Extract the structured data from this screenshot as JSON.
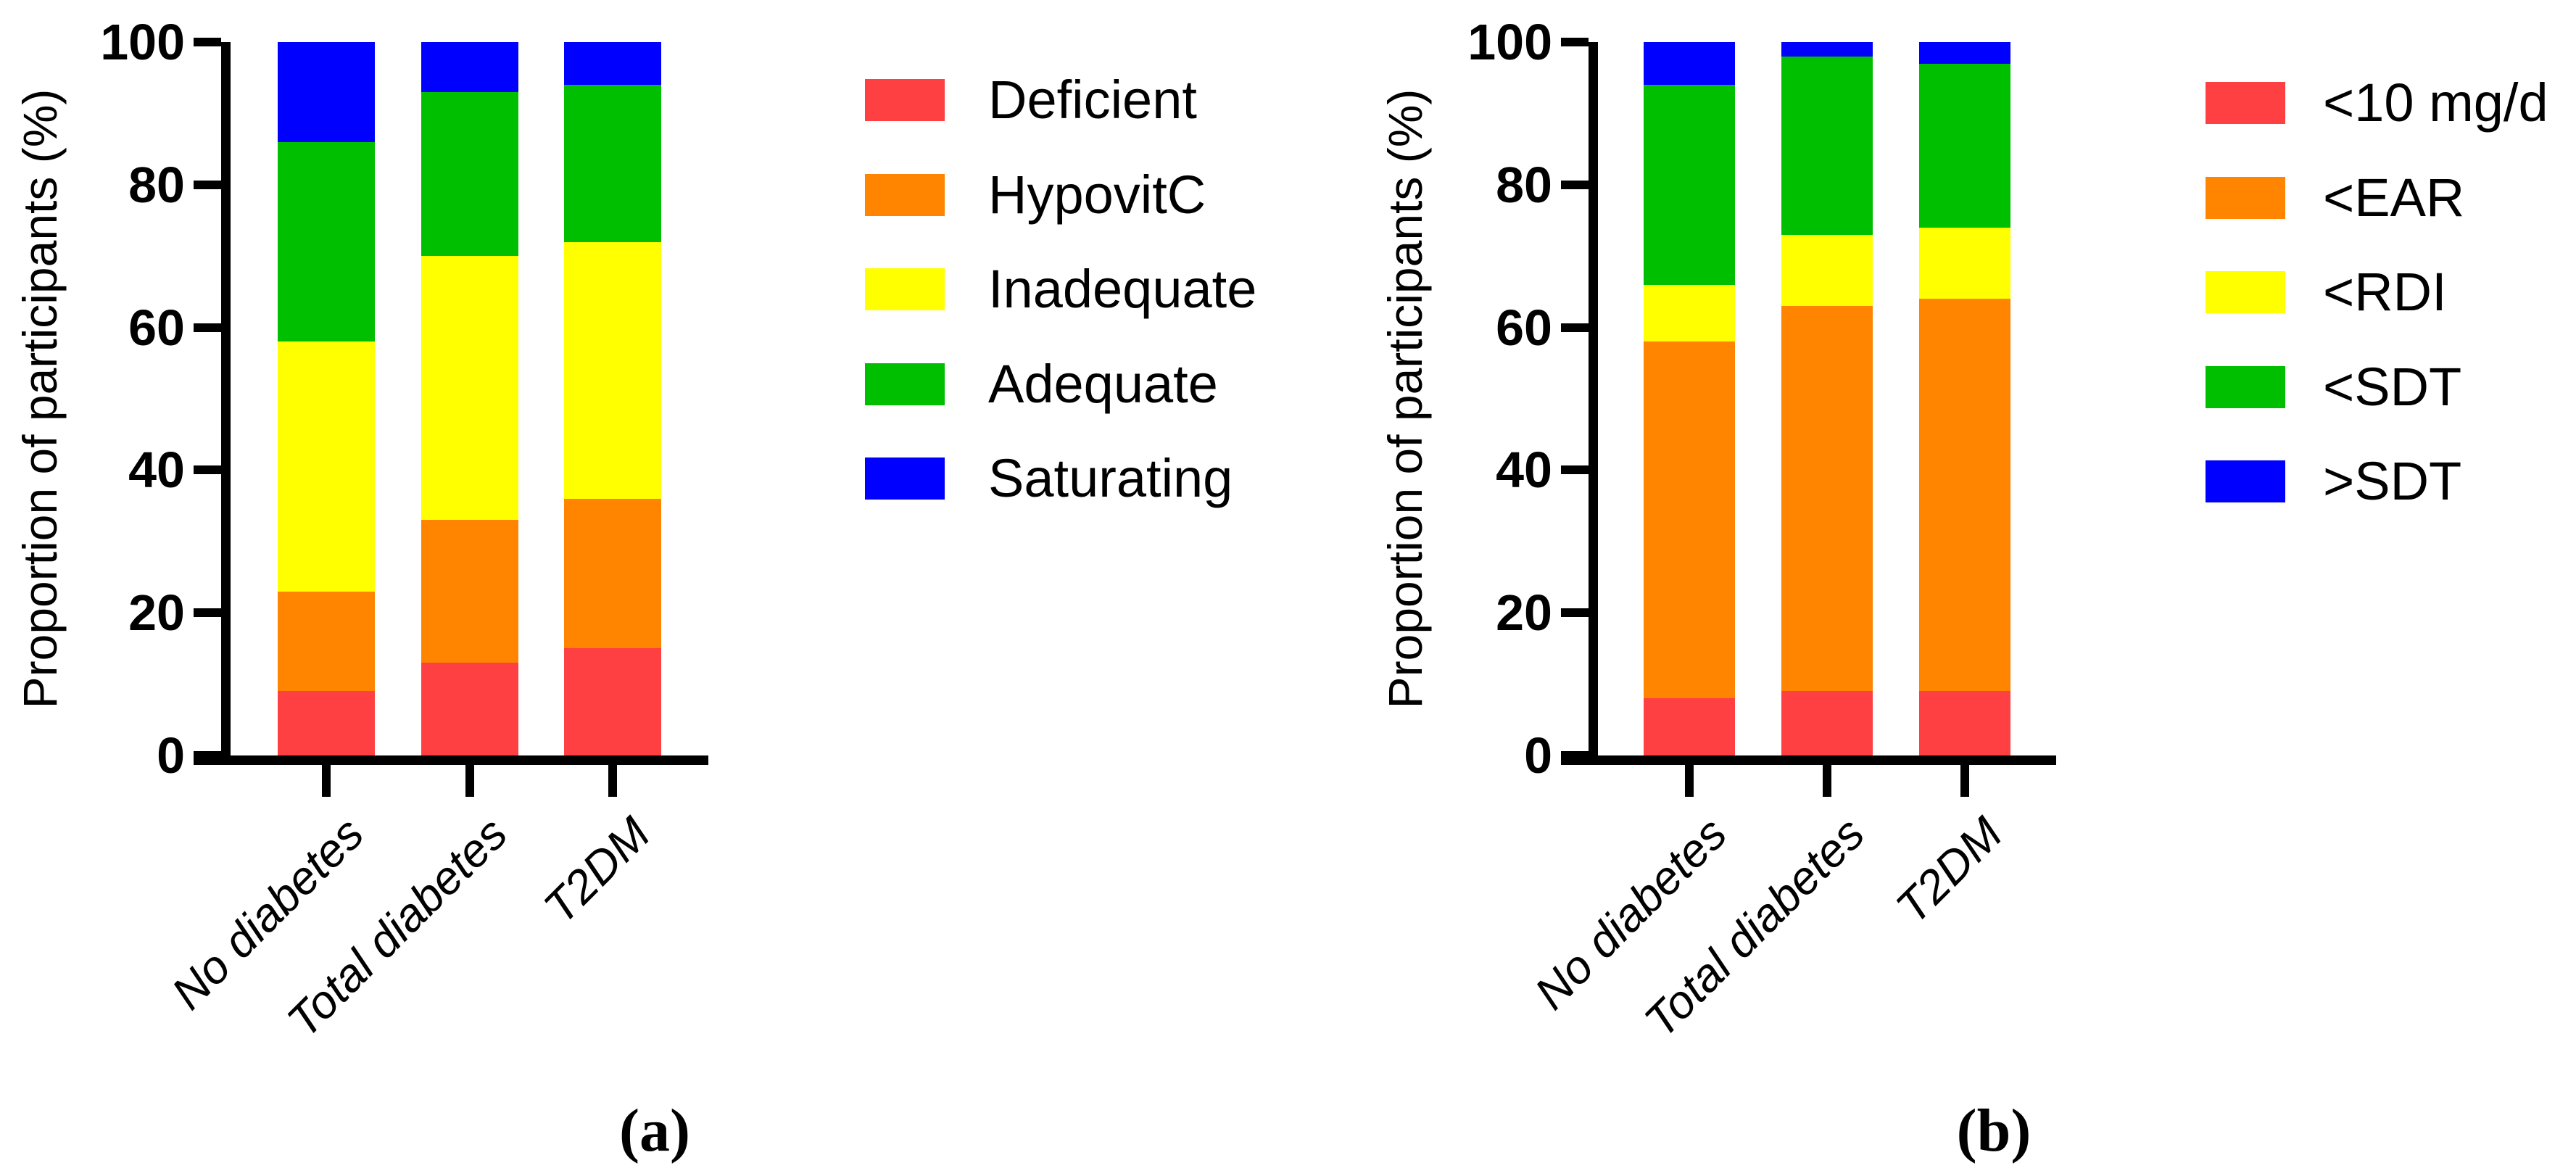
{
  "figure": {
    "background": "#ffffff",
    "axis_color": "#000000",
    "captions": [
      "(a)",
      "(b)"
    ]
  },
  "chart_data": [
    {
      "type": "bar",
      "stacked": true,
      "caption": "(a)",
      "title": "",
      "xlabel": "",
      "ylabel": "Proportion of participants (%)",
      "ylim": [
        0,
        100
      ],
      "yticks": [
        0,
        20,
        40,
        60,
        80,
        100
      ],
      "grid": false,
      "legend_position": "right",
      "categories": [
        "No diabetes",
        "Total diabetes",
        "T2DM"
      ],
      "series": [
        {
          "name": "Deficient",
          "color": "#FF4042",
          "values": [
            9,
            13,
            15
          ]
        },
        {
          "name": "HypovitC",
          "color": "#FF8400",
          "values": [
            14,
            20,
            21
          ]
        },
        {
          "name": "Inadequate",
          "color": "#FFFF00",
          "values": [
            35,
            37,
            36
          ]
        },
        {
          "name": "Adequate",
          "color": "#00BF00",
          "values": [
            28,
            23,
            22
          ]
        },
        {
          "name": "Saturating",
          "color": "#0000FF",
          "values": [
            14,
            7,
            6
          ]
        }
      ]
    },
    {
      "type": "bar",
      "stacked": true,
      "caption": "(b)",
      "title": "",
      "xlabel": "",
      "ylabel": "Proportion of participants (%)",
      "ylim": [
        0,
        100
      ],
      "yticks": [
        0,
        20,
        40,
        60,
        80,
        100
      ],
      "grid": false,
      "legend_position": "right",
      "categories": [
        "No diabetes",
        "Total diabetes",
        "T2DM"
      ],
      "series": [
        {
          "name": "<10 mg/d",
          "color": "#FF4042",
          "values": [
            8,
            9,
            9
          ]
        },
        {
          "name": "<EAR",
          "color": "#FF8400",
          "values": [
            50,
            54,
            55
          ]
        },
        {
          "name": "<RDI",
          "color": "#FFFF00",
          "values": [
            8,
            10,
            10
          ]
        },
        {
          "name": "<SDT",
          "color": "#00BF00",
          "values": [
            28,
            25,
            23
          ]
        },
        {
          "name": ">SDT",
          "color": "#0000FF",
          "values": [
            6,
            2,
            3
          ]
        }
      ]
    }
  ]
}
